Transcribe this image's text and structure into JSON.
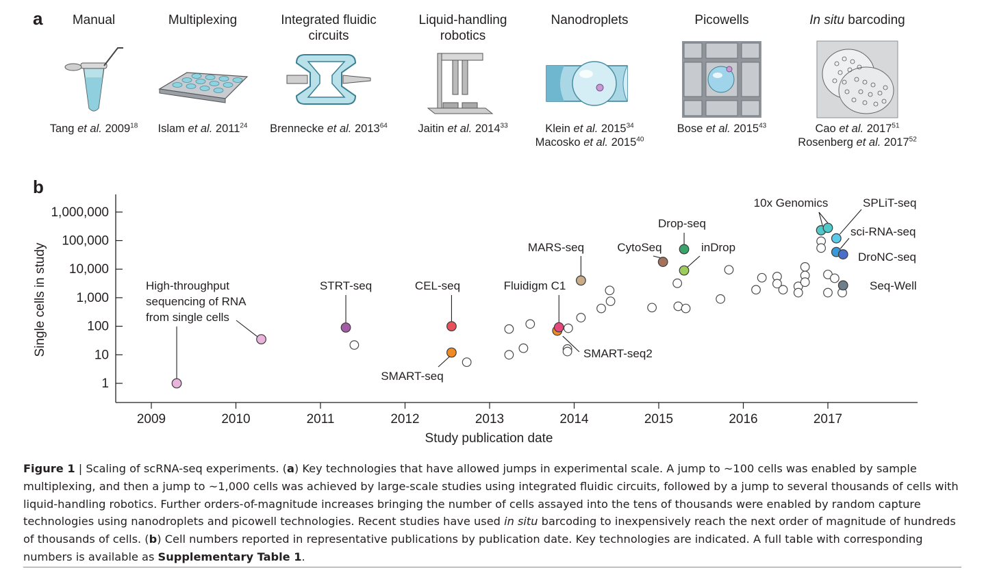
{
  "panel_a": {
    "letter": "a",
    "technologies": [
      {
        "title": "Manual",
        "ref_author": "Tang",
        "ref_etal": "et al.",
        "ref_year": "2009",
        "ref_sup": "18"
      },
      {
        "title": "Multiplexing",
        "ref_author": "Islam",
        "ref_etal": "et al.",
        "ref_year": "2011",
        "ref_sup": "24"
      },
      {
        "title": "Integrated fluidic circuits",
        "ref_author": "Brennecke",
        "ref_etal": "et al.",
        "ref_year": "2013",
        "ref_sup": "64"
      },
      {
        "title": "Liquid-handling robotics",
        "ref_author": "Jaitin",
        "ref_etal": "et al.",
        "ref_year": "2014",
        "ref_sup": "33"
      },
      {
        "title": "Nanodroplets",
        "ref_author": "Klein",
        "ref_etal": "et al.",
        "ref_year": "2015",
        "ref_sup": "34",
        "ref2_author": "Macosko",
        "ref2_etal": "et al.",
        "ref2_year": "2015",
        "ref2_sup": "40"
      },
      {
        "title": "Picowells",
        "ref_author": "Bose",
        "ref_etal": "et al.",
        "ref_year": "2015",
        "ref_sup": "43"
      },
      {
        "title_italic": "In situ",
        "title": "barcoding",
        "ref_author": "Cao",
        "ref_etal": "et al.",
        "ref_year": "2017",
        "ref_sup": "51",
        "ref2_author": "Rosenberg",
        "ref2_etal": "et al.",
        "ref2_year": "2017",
        "ref2_sup": "52"
      }
    ]
  },
  "panel_b": {
    "letter": "b"
  },
  "chart_data": {
    "type": "scatter",
    "xlabel": "Study publication date",
    "ylabel": "Single cells in study",
    "y_scale": "log",
    "xlim": [
      2008.6,
      2018.0
    ],
    "ylim": [
      0.6,
      2000000
    ],
    "x_ticks": [
      2009,
      2010,
      2011,
      2012,
      2013,
      2014,
      2015,
      2016,
      2017
    ],
    "y_ticks": [
      {
        "value": 1,
        "label": "1"
      },
      {
        "value": 10,
        "label": "10"
      },
      {
        "value": 100,
        "label": "100"
      },
      {
        "value": 1000,
        "label": "1,000"
      },
      {
        "value": 10000,
        "label": "10,000"
      },
      {
        "value": 100000,
        "label": "100,000"
      },
      {
        "value": 1000000,
        "label": "1,000,000"
      }
    ],
    "grid": false,
    "highlighted": [
      {
        "x": 2009.3,
        "y": 1,
        "color": "#e8b4db",
        "label": "High-throughput sequencing of RNA from single cells"
      },
      {
        "x": 2010.3,
        "y": 35,
        "color": "#e8b4db",
        "label": ""
      },
      {
        "x": 2011.3,
        "y": 90,
        "color": "#a55ca6",
        "label": "STRT-seq"
      },
      {
        "x": 2012.55,
        "y": 12,
        "color": "#f08a24",
        "label": "SMART-seq"
      },
      {
        "x": 2012.55,
        "y": 100,
        "color": "#e8505a",
        "label": "CEL-seq"
      },
      {
        "x": 2013.8,
        "y": 70,
        "color": "#f08a24",
        "label": "SMART-seq2"
      },
      {
        "x": 2013.82,
        "y": 92,
        "color": "#e5487d",
        "label": "Fluidigm C1"
      },
      {
        "x": 2014.08,
        "y": 4000,
        "color": "#c9ad88",
        "label": "MARS-seq"
      },
      {
        "x": 2015.05,
        "y": 18000,
        "color": "#a5735c",
        "label": "CytoSeq"
      },
      {
        "x": 2015.3,
        "y": 50000,
        "color": "#3aa36a",
        "label": "Drop-seq"
      },
      {
        "x": 2015.3,
        "y": 9000,
        "color": "#9ccc5a",
        "label": "inDrop"
      },
      {
        "x": 2016.92,
        "y": 230000,
        "color": "#4fc9c9",
        "label": "10x Genomics"
      },
      {
        "x": 2017.0,
        "y": 280000,
        "color": "#4fc9c9",
        "label": ""
      },
      {
        "x": 2017.1,
        "y": 120000,
        "color": "#5cc8ea",
        "label": "SPLiT-seq"
      },
      {
        "x": 2017.1,
        "y": 40000,
        "color": "#3a9ad9",
        "label": "sci-RNA-seq"
      },
      {
        "x": 2017.18,
        "y": 33000,
        "color": "#4a6fc9",
        "label": "DroNC-seq"
      },
      {
        "x": 2017.18,
        "y": 2700,
        "color": "#6e7f8c",
        "label": "Seq-Well"
      }
    ],
    "other_studies": [
      {
        "x": 2011.4,
        "y": 22
      },
      {
        "x": 2012.73,
        "y": 5.5
      },
      {
        "x": 2013.23,
        "y": 80
      },
      {
        "x": 2013.23,
        "y": 10
      },
      {
        "x": 2013.4,
        "y": 17
      },
      {
        "x": 2013.48,
        "y": 120
      },
      {
        "x": 2013.93,
        "y": 85
      },
      {
        "x": 2013.92,
        "y": 16
      },
      {
        "x": 2013.92,
        "y": 13
      },
      {
        "x": 2014.08,
        "y": 200
      },
      {
        "x": 2014.32,
        "y": 420
      },
      {
        "x": 2014.42,
        "y": 1800
      },
      {
        "x": 2014.43,
        "y": 750
      },
      {
        "x": 2014.92,
        "y": 450
      },
      {
        "x": 2015.22,
        "y": 3200
      },
      {
        "x": 2015.23,
        "y": 500
      },
      {
        "x": 2015.32,
        "y": 420
      },
      {
        "x": 2015.73,
        "y": 900
      },
      {
        "x": 2015.83,
        "y": 9500
      },
      {
        "x": 2016.15,
        "y": 1900
      },
      {
        "x": 2016.22,
        "y": 5000
      },
      {
        "x": 2016.4,
        "y": 5500
      },
      {
        "x": 2016.4,
        "y": 3100
      },
      {
        "x": 2016.47,
        "y": 1900
      },
      {
        "x": 2016.65,
        "y": 2500
      },
      {
        "x": 2016.65,
        "y": 1500
      },
      {
        "x": 2016.73,
        "y": 12000
      },
      {
        "x": 2016.73,
        "y": 6000
      },
      {
        "x": 2016.73,
        "y": 3500
      },
      {
        "x": 2016.92,
        "y": 95000
      },
      {
        "x": 2016.92,
        "y": 55000
      },
      {
        "x": 2017.0,
        "y": 6500
      },
      {
        "x": 2017.0,
        "y": 1500
      },
      {
        "x": 2017.08,
        "y": 4800
      },
      {
        "x": 2017.17,
        "y": 1500
      }
    ]
  },
  "caption": {
    "fig": "Figure 1",
    "sep": " | Scaling of scRNA-seq experiments. (",
    "a": "a",
    "after_a": ") Key technologies that have allowed jumps in experimental scale. A jump to ~100 cells was enabled by sample multiplexing, and then a jump to ~1,000 cells was achieved by large-scale studies using integrated fluidic circuits, followed by a jump to several thousands of cells with liquid-handling robotics. Further orders-of-magnitude increases bringing the number of cells assayed into the tens of thousands were enabled by random capture technologies using nanodroplets and picowell technologies. Recent studies have used ",
    "insitu": "in situ",
    "after_insitu": " barcoding to inexpensively reach the next order of magnitude of hundreds of thousands of cells. (",
    "b": "b",
    "after_b": ") Cell numbers reported in representative publications by publication date. Key technologies are indicated. A full table with corresponding numbers is available as ",
    "supp": "Supplementary Table 1",
    "end": "."
  }
}
